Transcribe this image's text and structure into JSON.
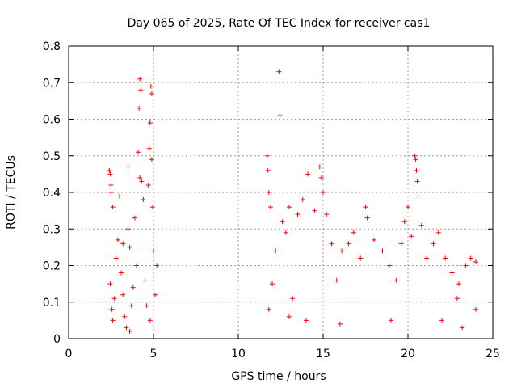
{
  "chart_data": {
    "type": "scatter",
    "title": "Day 065 of 2025, Rate Of TEC Index for receiver cas1",
    "xlabel": "GPS time / hours",
    "ylabel": "ROTI / TECUs",
    "xlim": [
      0,
      25
    ],
    "ylim": [
      0,
      0.8
    ],
    "xticks": [
      0,
      5,
      10,
      15,
      20,
      25
    ],
    "xtick_labels": [
      "0",
      "5",
      "10",
      "15",
      "20",
      "25"
    ],
    "yticks": [
      0,
      0.1,
      0.2,
      0.3,
      0.4,
      0.5,
      0.6,
      0.7,
      0.8
    ],
    "ytick_labels": [
      "0",
      "0.1",
      "0.2",
      "0.3",
      "0.4",
      "0.5",
      "0.6",
      "0.7",
      "0.8"
    ],
    "grid": true,
    "marker": "+",
    "series": [
      {
        "name": "cas1",
        "color": "#ff0000",
        "points": [
          [
            2.4,
            0.46
          ],
          [
            2.45,
            0.45
          ],
          [
            2.5,
            0.42
          ],
          [
            2.5,
            0.4
          ],
          [
            2.6,
            0.36
          ],
          [
            2.45,
            0.15
          ],
          [
            2.55,
            0.08
          ],
          [
            2.6,
            0.05
          ],
          [
            2.7,
            0.11
          ],
          [
            2.8,
            0.22
          ],
          [
            2.9,
            0.27
          ],
          [
            3.0,
            0.39
          ],
          [
            3.1,
            0.18
          ],
          [
            3.2,
            0.12
          ],
          [
            3.3,
            0.06
          ],
          [
            3.4,
            0.03
          ],
          [
            3.5,
            0.3
          ],
          [
            3.5,
            0.47
          ],
          [
            3.6,
            0.25
          ],
          [
            3.7,
            0.09
          ],
          [
            3.8,
            0.14
          ],
          [
            3.9,
            0.33
          ],
          [
            4.0,
            0.2
          ],
          [
            4.1,
            0.51
          ],
          [
            4.15,
            0.63
          ],
          [
            4.2,
            0.71
          ],
          [
            4.25,
            0.68
          ],
          [
            4.2,
            0.44
          ],
          [
            4.3,
            0.43
          ],
          [
            4.4,
            0.38
          ],
          [
            4.5,
            0.16
          ],
          [
            4.6,
            0.09
          ],
          [
            4.7,
            0.42
          ],
          [
            4.75,
            0.52
          ],
          [
            4.8,
            0.59
          ],
          [
            4.85,
            0.69
          ],
          [
            4.9,
            0.67
          ],
          [
            4.9,
            0.49
          ],
          [
            4.95,
            0.36
          ],
          [
            5.0,
            0.24
          ],
          [
            5.1,
            0.12
          ],
          [
            5.2,
            0.2
          ],
          [
            4.8,
            0.05
          ],
          [
            3.2,
            0.26
          ],
          [
            3.6,
            0.02
          ],
          [
            11.7,
            0.5
          ],
          [
            11.75,
            0.46
          ],
          [
            11.8,
            0.4
          ],
          [
            11.9,
            0.36
          ],
          [
            11.8,
            0.08
          ],
          [
            12.0,
            0.15
          ],
          [
            12.2,
            0.24
          ],
          [
            12.4,
            0.73
          ],
          [
            12.45,
            0.61
          ],
          [
            12.6,
            0.32
          ],
          [
            12.8,
            0.29
          ],
          [
            13.0,
            0.36
          ],
          [
            13.2,
            0.11
          ],
          [
            13.5,
            0.34
          ],
          [
            13.8,
            0.38
          ],
          [
            14.1,
            0.45
          ],
          [
            14.5,
            0.35
          ],
          [
            14.8,
            0.47
          ],
          [
            14.9,
            0.44
          ],
          [
            15.0,
            0.4
          ],
          [
            15.2,
            0.34
          ],
          [
            15.5,
            0.26
          ],
          [
            15.8,
            0.16
          ],
          [
            16.1,
            0.24
          ],
          [
            16.5,
            0.26
          ],
          [
            16.8,
            0.29
          ],
          [
            17.2,
            0.22
          ],
          [
            17.5,
            0.36
          ],
          [
            17.6,
            0.33
          ],
          [
            18.0,
            0.27
          ],
          [
            18.5,
            0.24
          ],
          [
            18.9,
            0.2
          ],
          [
            19.3,
            0.16
          ],
          [
            19.6,
            0.26
          ],
          [
            19.8,
            0.32
          ],
          [
            20.0,
            0.36
          ],
          [
            20.2,
            0.28
          ],
          [
            20.4,
            0.5
          ],
          [
            20.45,
            0.49
          ],
          [
            20.5,
            0.46
          ],
          [
            20.55,
            0.43
          ],
          [
            20.6,
            0.39
          ],
          [
            20.8,
            0.31
          ],
          [
            21.1,
            0.22
          ],
          [
            21.5,
            0.26
          ],
          [
            21.8,
            0.29
          ],
          [
            22.2,
            0.22
          ],
          [
            22.6,
            0.18
          ],
          [
            23.0,
            0.15
          ],
          [
            23.4,
            0.2
          ],
          [
            23.7,
            0.22
          ],
          [
            24.0,
            0.21
          ],
          [
            23.2,
            0.03
          ],
          [
            22.0,
            0.05
          ],
          [
            19.0,
            0.05
          ],
          [
            16.0,
            0.04
          ],
          [
            14.0,
            0.05
          ],
          [
            13.0,
            0.06
          ],
          [
            24.0,
            0.08
          ],
          [
            22.9,
            0.11
          ]
        ]
      }
    ]
  }
}
